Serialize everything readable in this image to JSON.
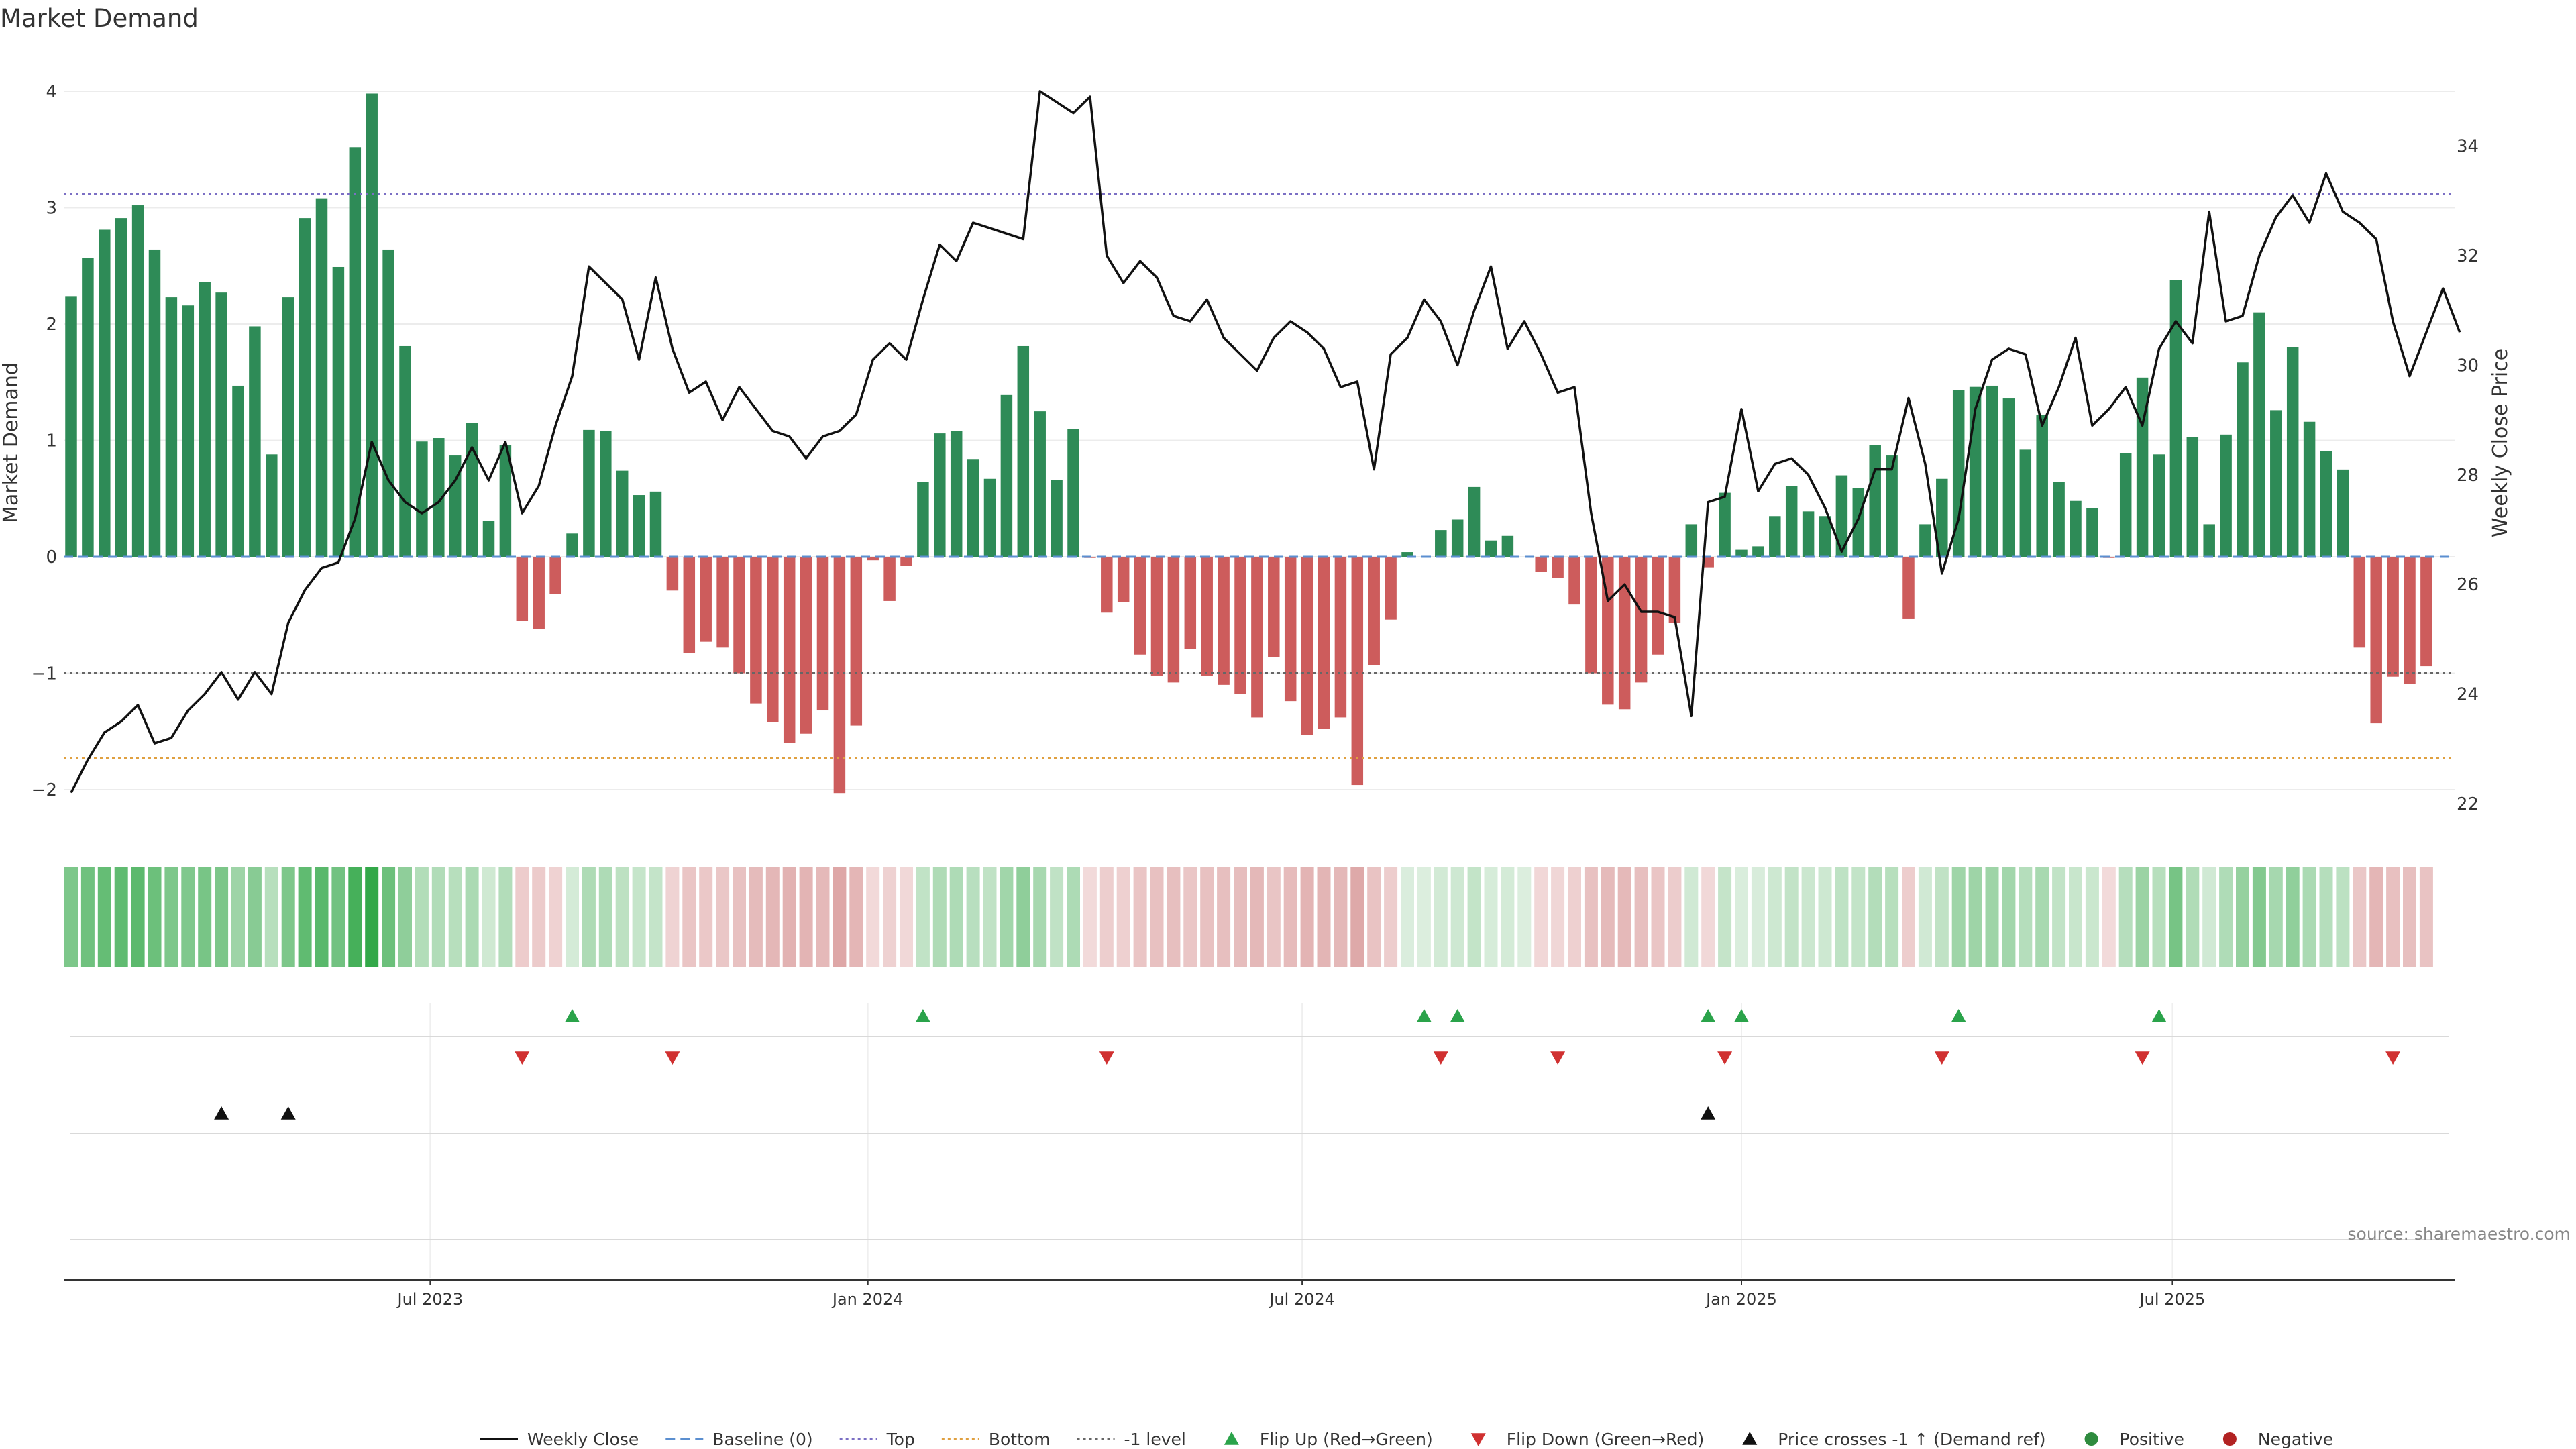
{
  "chart_data": {
    "type": "bar",
    "title": "Market Demand",
    "ylabel": "Market Demand",
    "y2label": "Weekly Close Price",
    "ylim": [
      -2.2,
      4.15
    ],
    "y2lim": [
      21.6,
      35.5
    ],
    "yticks": [
      -2,
      -1,
      0,
      1,
      2,
      3,
      4
    ],
    "yticklabels": [
      "−2",
      "−1",
      "0",
      "1",
      "2",
      "3",
      "4"
    ],
    "y2ticks": [
      22,
      24,
      26,
      28,
      30,
      32,
      34
    ],
    "y2ticklabels": [
      "22",
      "24",
      "26",
      "28",
      "30",
      "32",
      "34"
    ],
    "reference_lines": {
      "top": 3.12,
      "bottom": -1.73,
      "minus_one_level": -1,
      "baseline": 0
    },
    "x_date_ticks": [
      {
        "week": 21.5,
        "label": "Jul 2023"
      },
      {
        "week": 47.7,
        "label": "Jan 2024"
      },
      {
        "week": 73.7,
        "label": "Jul 2024"
      },
      {
        "week": 100,
        "label": "Jan 2025"
      },
      {
        "week": 125.8,
        "label": "Jul 2025"
      }
    ],
    "demand": [
      2.24,
      2.57,
      2.81,
      2.91,
      3.02,
      2.64,
      2.23,
      2.16,
      2.36,
      2.27,
      1.47,
      1.98,
      0.88,
      2.23,
      2.91,
      3.08,
      2.49,
      3.52,
      3.98,
      2.64,
      1.81,
      0.99,
      1.02,
      0.87,
      1.15,
      0.31,
      0.96,
      -0.55,
      -0.62,
      -0.32,
      0.2,
      1.09,
      1.08,
      0.74,
      0.53,
      0.56,
      -0.29,
      -0.83,
      -0.73,
      -0.78,
      -1.0,
      -1.26,
      -1.42,
      -1.6,
      -1.52,
      -1.32,
      -2.03,
      -1.45,
      -0.03,
      -0.38,
      -0.08,
      0.64,
      1.06,
      1.08,
      0.84,
      0.67,
      1.39,
      1.81,
      1.25,
      0.66,
      1.1,
      -0.01,
      -0.48,
      -0.39,
      -0.84,
      -1.02,
      -1.08,
      -0.79,
      -1.02,
      -1.1,
      -1.18,
      -1.38,
      -0.86,
      -1.24,
      -1.53,
      -1.48,
      -1.38,
      -1.96,
      -0.93,
      -0.54,
      0.04,
      0.0,
      0.23,
      0.32,
      0.6,
      0.14,
      0.18,
      0.0,
      -0.13,
      -0.18,
      -0.41,
      -1.0,
      -1.27,
      -1.31,
      -1.08,
      -0.84,
      -0.57,
      0.28,
      -0.09,
      0.55,
      0.06,
      0.09,
      0.35,
      0.61,
      0.39,
      0.35,
      0.7,
      0.59,
      0.96,
      0.87,
      -0.53,
      0.28,
      0.67,
      1.43,
      1.46,
      1.47,
      1.36,
      0.92,
      1.22,
      0.64,
      0.48,
      0.42,
      -0.01,
      0.89,
      1.54,
      0.88,
      2.38,
      1.03,
      0.28,
      1.05,
      1.67,
      2.1,
      1.26,
      1.8,
      1.16,
      0.91,
      0.75,
      -0.78,
      -1.43,
      -1.03,
      -1.09,
      -0.94
    ],
    "heat_strip": [
      2.24,
      2.57,
      2.81,
      2.91,
      3.02,
      2.64,
      2.23,
      2.16,
      2.36,
      2.27,
      1.47,
      1.98,
      0.88,
      2.23,
      2.91,
      3.08,
      2.49,
      3.52,
      3.98,
      2.64,
      1.81,
      0.99,
      1.02,
      0.87,
      1.15,
      0.31,
      0.96,
      -0.55,
      -0.62,
      -0.32,
      0.2,
      1.09,
      1.08,
      0.74,
      0.53,
      0.56,
      -0.29,
      -0.83,
      -0.73,
      -0.78,
      -1.0,
      -1.26,
      -1.42,
      -1.6,
      -1.52,
      -1.32,
      -2.03,
      -1.45,
      -0.03,
      -0.38,
      -0.08,
      0.64,
      1.06,
      1.08,
      0.84,
      0.67,
      1.39,
      1.81,
      1.25,
      0.66,
      1.1,
      -0.01,
      -0.48,
      -0.39,
      -0.84,
      -1.02,
      -1.08,
      -0.79,
      -1.02,
      -1.1,
      -1.18,
      -1.38,
      -0.86,
      -1.24,
      -1.53,
      -1.48,
      -1.38,
      -1.96,
      -0.93,
      -0.54,
      0.04,
      0.0,
      0.23,
      0.32,
      0.6,
      0.14,
      0.18,
      0.0,
      -0.13,
      -0.18,
      -0.41,
      -1.0,
      -1.27,
      -1.31,
      -1.08,
      -0.84,
      -0.57,
      0.28,
      -0.09,
      0.55,
      0.06,
      0.09,
      0.35,
      0.61,
      0.39,
      0.35,
      0.7,
      0.59,
      0.96,
      0.87,
      -0.53,
      0.28,
      0.67,
      1.43,
      1.46,
      1.47,
      1.36,
      0.92,
      1.22,
      0.64,
      0.48,
      0.42,
      -0.01,
      0.89,
      1.54,
      0.88,
      2.38,
      1.03,
      0.28,
      1.05,
      1.67,
      2.1,
      1.26,
      1.8,
      1.16,
      0.91,
      0.75,
      -0.78,
      -1.43,
      -1.03,
      -1.09,
      -0.94
    ],
    "weekly_close": [
      22.2,
      22.8,
      23.3,
      23.5,
      23.8,
      23.1,
      23.2,
      23.7,
      24.0,
      24.4,
      23.9,
      24.4,
      24.0,
      25.3,
      25.9,
      26.3,
      26.4,
      27.2,
      28.6,
      27.9,
      27.5,
      27.3,
      27.5,
      27.9,
      28.5,
      27.9,
      28.6,
      27.3,
      27.8,
      28.9,
      29.8,
      31.8,
      31.5,
      31.2,
      30.1,
      31.6,
      30.3,
      29.5,
      29.7,
      29.0,
      29.6,
      29.2,
      28.8,
      28.7,
      28.3,
      28.7,
      28.8,
      29.1,
      30.1,
      30.4,
      30.1,
      31.2,
      32.2,
      31.9,
      32.6,
      32.5,
      32.4,
      32.3,
      35.0,
      34.8,
      34.6,
      34.9,
      32.0,
      31.5,
      31.9,
      31.6,
      30.9,
      30.8,
      31.2,
      30.5,
      30.2,
      29.9,
      30.5,
      30.8,
      30.6,
      30.3,
      29.6,
      29.7,
      28.1,
      30.2,
      30.5,
      31.2,
      30.8,
      30.0,
      31.0,
      31.8,
      30.3,
      30.8,
      30.2,
      29.5,
      29.6,
      27.3,
      25.7,
      26.0,
      25.5,
      25.5,
      25.4,
      23.6,
      27.5,
      27.6,
      29.2,
      27.7,
      28.2,
      28.3,
      28.0,
      27.4,
      26.6,
      27.2,
      28.1,
      28.1,
      29.4,
      28.2,
      26.2,
      27.2,
      29.2,
      30.1,
      30.3,
      30.2,
      28.9,
      29.6,
      30.5,
      28.9,
      29.2,
      29.6,
      28.9,
      30.3,
      30.8,
      30.4,
      32.8,
      30.8,
      30.9,
      32.0,
      32.7,
      33.1,
      32.6,
      33.5,
      32.8,
      32.6,
      32.3,
      30.8,
      29.8,
      30.6,
      31.4,
      30.6
    ],
    "flip_up_weeks": [
      30,
      51,
      81,
      83,
      98,
      100,
      113,
      125
    ],
    "flip_down_weeks": [
      27,
      36,
      62,
      82,
      89,
      99,
      112,
      124,
      139
    ],
    "price_cross_weeks": [
      9,
      13,
      98
    ],
    "source_text": "source: sharemaestro.com",
    "legend": [
      {
        "label": "Weekly Close",
        "kind": "line",
        "color": "#111111"
      },
      {
        "label": "Baseline (0)",
        "kind": "dash",
        "color": "#5b8fd0"
      },
      {
        "label": "Top",
        "kind": "dot",
        "color": "#7b6fc4"
      },
      {
        "label": "Bottom",
        "kind": "dot",
        "color": "#e0a040"
      },
      {
        "label": "-1 level",
        "kind": "dot",
        "color": "#666666"
      },
      {
        "label": "Flip Up (Red→Green)",
        "kind": "tri-up",
        "color": "#2aa34a"
      },
      {
        "label": "Flip Down (Green→Red)",
        "kind": "tri-down",
        "color": "#d03030"
      },
      {
        "label": "Price crosses -1 ↑ (Demand ref)",
        "kind": "tri-up",
        "color": "#111111"
      },
      {
        "label": "Positive",
        "kind": "circle",
        "color": "#2e8b3e"
      },
      {
        "label": "Negative",
        "kind": "circle",
        "color": "#b22222"
      }
    ],
    "colors": {
      "positive_bar": "#2e8b57",
      "negative_bar": "#cd5c5c",
      "price_line": "#111111",
      "top_line": "#7b6fc4",
      "bottom_line": "#e0a040",
      "minus_one_line": "#666666",
      "baseline": "#5b8fd0"
    }
  }
}
